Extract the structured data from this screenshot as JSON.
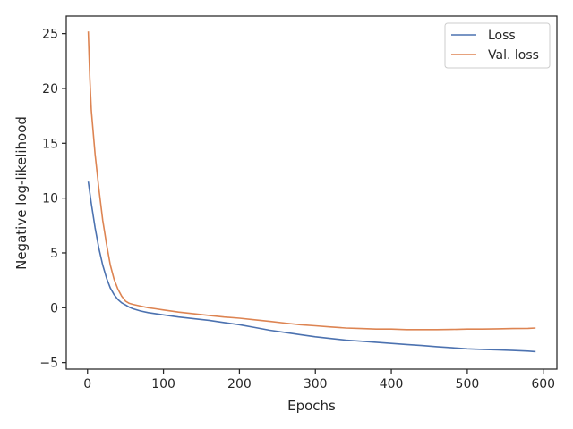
{
  "chart_data": {
    "type": "line",
    "title": "",
    "xlabel": "Epochs",
    "ylabel": "Negative log-likelihood",
    "xlim": [
      -28,
      618
    ],
    "ylim": [
      -5.6,
      26.6
    ],
    "xticks": [
      0,
      100,
      200,
      300,
      400,
      500,
      600
    ],
    "yticks": [
      -5,
      0,
      5,
      10,
      15,
      20,
      25
    ],
    "grid": false,
    "legend_position": "top-right",
    "series": [
      {
        "name": "Loss",
        "color": "#4c72b0",
        "x": [
          1,
          5,
          10,
          15,
          20,
          25,
          30,
          35,
          40,
          45,
          50,
          55,
          60,
          70,
          80,
          90,
          100,
          120,
          140,
          160,
          180,
          200,
          220,
          240,
          260,
          280,
          300,
          320,
          340,
          360,
          380,
          400,
          420,
          440,
          460,
          480,
          500,
          520,
          540,
          560,
          580,
          590
        ],
        "y": [
          11.5,
          9.5,
          7.3,
          5.4,
          3.9,
          2.7,
          1.8,
          1.2,
          0.75,
          0.45,
          0.25,
          0.05,
          -0.1,
          -0.3,
          -0.45,
          -0.55,
          -0.65,
          -0.85,
          -1.0,
          -1.15,
          -1.35,
          -1.55,
          -1.8,
          -2.05,
          -2.25,
          -2.45,
          -2.65,
          -2.8,
          -2.95,
          -3.05,
          -3.15,
          -3.25,
          -3.35,
          -3.45,
          -3.55,
          -3.65,
          -3.75,
          -3.8,
          -3.85,
          -3.9,
          -3.95,
          -4.0
        ]
      },
      {
        "name": "Val. loss",
        "color": "#dd8452",
        "x": [
          1,
          3,
          5,
          10,
          15,
          20,
          25,
          30,
          35,
          40,
          45,
          50,
          55,
          60,
          70,
          80,
          90,
          100,
          120,
          140,
          160,
          180,
          200,
          220,
          240,
          260,
          280,
          300,
          320,
          340,
          360,
          380,
          400,
          420,
          440,
          460,
          480,
          500,
          520,
          540,
          560,
          580,
          590
        ],
        "y": [
          25.2,
          21.0,
          18.0,
          14.0,
          10.8,
          8.0,
          5.8,
          3.9,
          2.6,
          1.7,
          1.05,
          0.6,
          0.4,
          0.3,
          0.15,
          0.0,
          -0.1,
          -0.2,
          -0.4,
          -0.55,
          -0.7,
          -0.85,
          -0.95,
          -1.1,
          -1.25,
          -1.4,
          -1.55,
          -1.65,
          -1.75,
          -1.85,
          -1.9,
          -1.95,
          -1.95,
          -2.0,
          -2.0,
          -2.0,
          -1.98,
          -1.95,
          -1.95,
          -1.92,
          -1.9,
          -1.88,
          -1.85
        ]
      }
    ]
  }
}
